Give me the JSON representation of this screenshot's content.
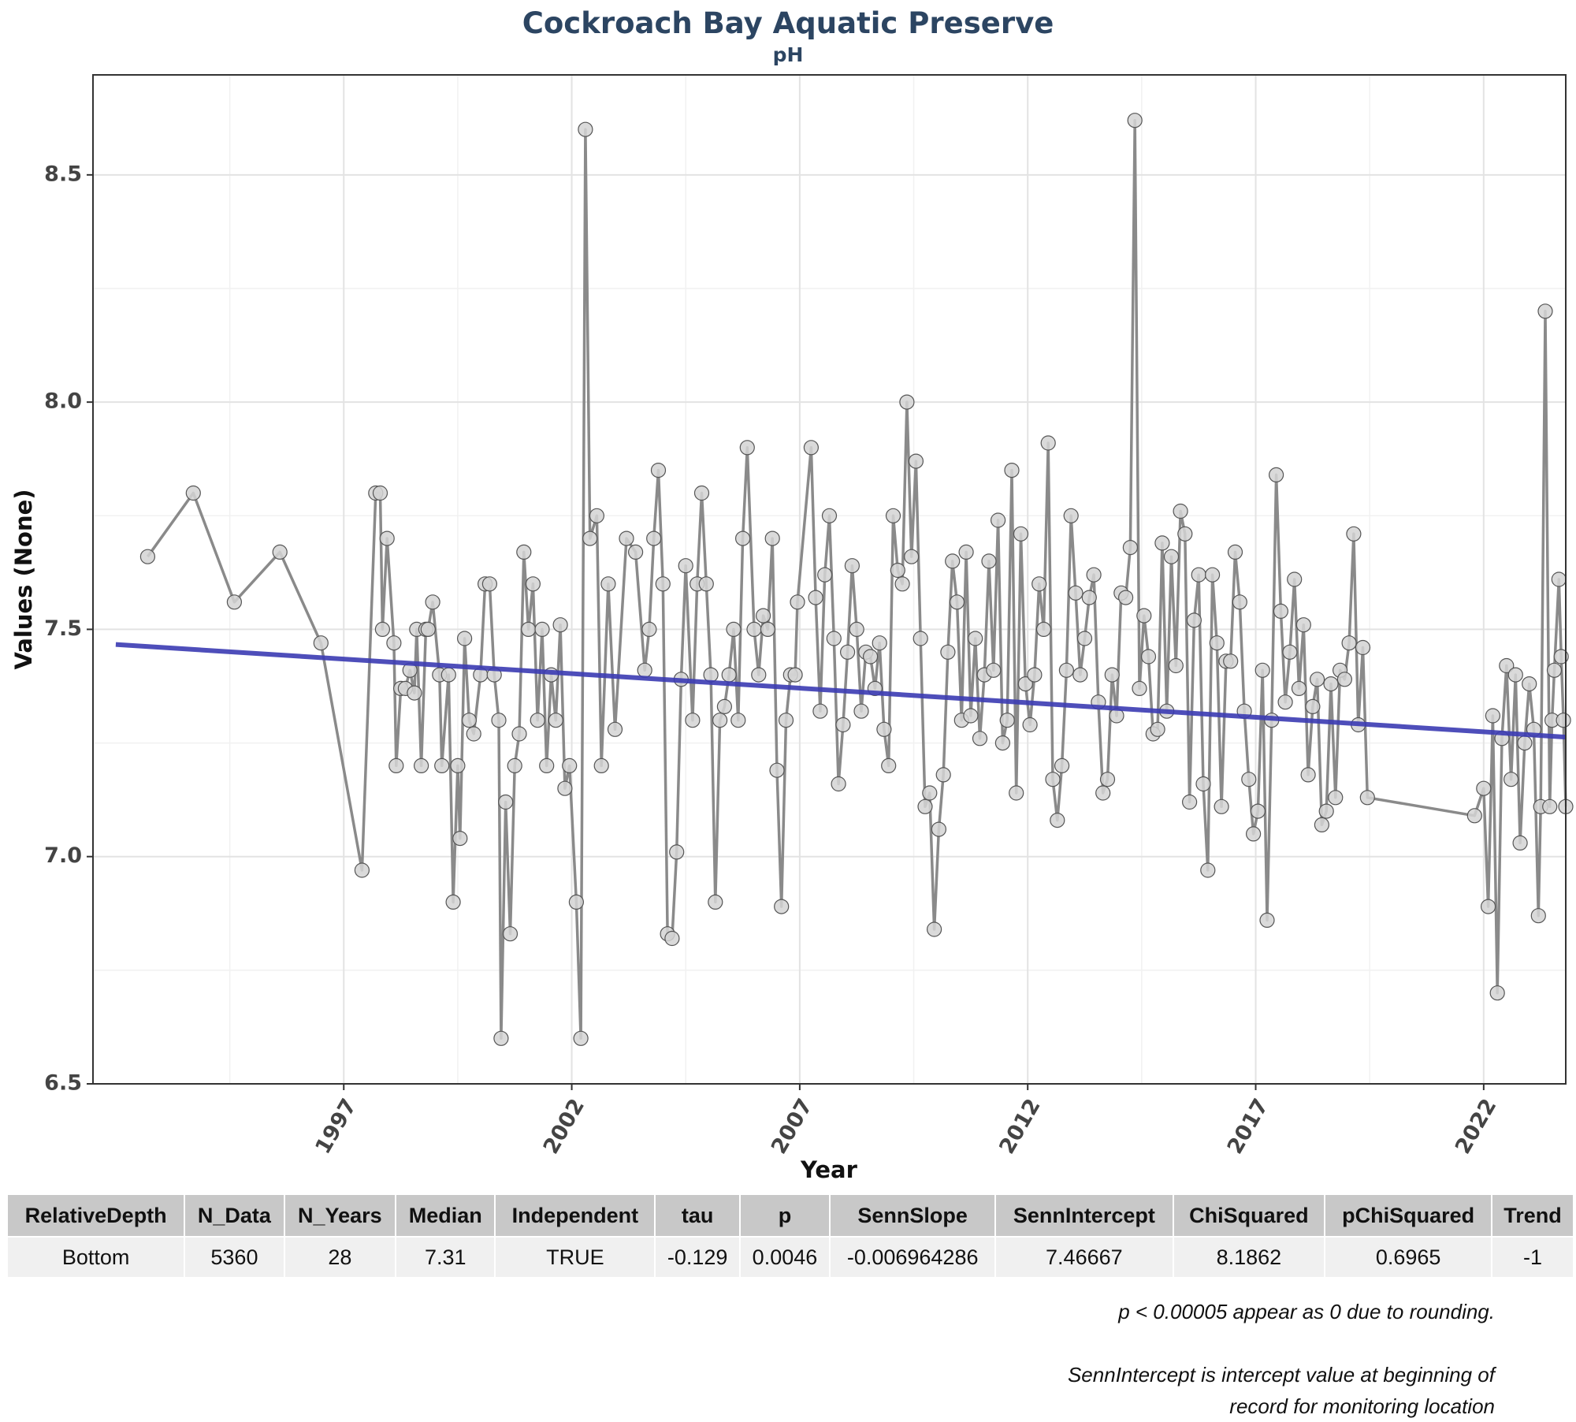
{
  "chart_data": {
    "type": "line",
    "title": "Cockroach Bay Aquatic Preserve",
    "subtitle": "pH",
    "xlabel": "Year",
    "ylabel": "Values (None)",
    "xlim": [
      1991.5,
      2023.8
    ],
    "ylim": [
      6.5,
      8.72
    ],
    "x_ticks": [
      1997,
      2002,
      2007,
      2012,
      2017,
      2022
    ],
    "y_ticks": [
      "6.5",
      "7.0",
      "7.5",
      "8.0",
      "8.5"
    ],
    "grid": true,
    "colors": {
      "series": "#8a8a8a",
      "point_fill": "#d3d3d3",
      "point_stroke": "#555555",
      "trend": "#3b3bb3"
    },
    "series": [
      {
        "values": [
          [
            1992.7,
            7.66
          ],
          [
            1993.7,
            7.8
          ],
          [
            1994.6,
            7.56
          ],
          [
            1995.6,
            7.67
          ],
          [
            1996.5,
            7.47
          ],
          [
            1997.4,
            6.97
          ],
          [
            1997.7,
            7.8
          ],
          [
            1997.8,
            7.8
          ],
          [
            1997.85,
            7.5
          ],
          [
            1997.95,
            7.7
          ],
          [
            1998.1,
            7.47
          ],
          [
            1998.15,
            7.2
          ],
          [
            1998.25,
            7.37
          ],
          [
            1998.35,
            7.37
          ],
          [
            1998.45,
            7.41
          ],
          [
            1998.55,
            7.36
          ],
          [
            1998.6,
            7.5
          ],
          [
            1998.7,
            7.2
          ],
          [
            1998.8,
            7.5
          ],
          [
            1998.85,
            7.5
          ],
          [
            1998.95,
            7.56
          ],
          [
            1999.1,
            7.4
          ],
          [
            1999.15,
            7.2
          ],
          [
            1999.3,
            7.4
          ],
          [
            1999.4,
            6.9
          ],
          [
            1999.5,
            7.2
          ],
          [
            1999.55,
            7.04
          ],
          [
            1999.65,
            7.48
          ],
          [
            1999.75,
            7.3
          ],
          [
            1999.85,
            7.27
          ],
          [
            2000.0,
            7.4
          ],
          [
            2000.1,
            7.6
          ],
          [
            2000.2,
            7.6
          ],
          [
            2000.3,
            7.4
          ],
          [
            2000.4,
            7.3
          ],
          [
            2000.45,
            6.6
          ],
          [
            2000.55,
            7.12
          ],
          [
            2000.65,
            6.83
          ],
          [
            2000.75,
            7.2
          ],
          [
            2000.85,
            7.27
          ],
          [
            2000.95,
            7.67
          ],
          [
            2001.05,
            7.5
          ],
          [
            2001.15,
            7.6
          ],
          [
            2001.25,
            7.3
          ],
          [
            2001.35,
            7.5
          ],
          [
            2001.45,
            7.2
          ],
          [
            2001.55,
            7.4
          ],
          [
            2001.65,
            7.3
          ],
          [
            2001.75,
            7.51
          ],
          [
            2001.85,
            7.15
          ],
          [
            2001.95,
            7.2
          ],
          [
            2002.1,
            6.9
          ],
          [
            2002.2,
            6.6
          ],
          [
            2002.3,
            8.6
          ],
          [
            2002.4,
            7.7
          ],
          [
            2002.55,
            7.75
          ],
          [
            2002.65,
            7.2
          ],
          [
            2002.8,
            7.6
          ],
          [
            2002.95,
            7.28
          ],
          [
            2003.2,
            7.7
          ],
          [
            2003.4,
            7.67
          ],
          [
            2003.6,
            7.41
          ],
          [
            2003.7,
            7.5
          ],
          [
            2003.8,
            7.7
          ],
          [
            2003.9,
            7.85
          ],
          [
            2004.0,
            7.6
          ],
          [
            2004.1,
            6.83
          ],
          [
            2004.2,
            6.82
          ],
          [
            2004.3,
            7.01
          ],
          [
            2004.4,
            7.39
          ],
          [
            2004.5,
            7.64
          ],
          [
            2004.65,
            7.3
          ],
          [
            2004.75,
            7.6
          ],
          [
            2004.85,
            7.8
          ],
          [
            2004.95,
            7.6
          ],
          [
            2005.05,
            7.4
          ],
          [
            2005.15,
            6.9
          ],
          [
            2005.25,
            7.3
          ],
          [
            2005.35,
            7.33
          ],
          [
            2005.45,
            7.4
          ],
          [
            2005.55,
            7.5
          ],
          [
            2005.65,
            7.3
          ],
          [
            2005.75,
            7.7
          ],
          [
            2005.85,
            7.9
          ],
          [
            2006.0,
            7.5
          ],
          [
            2006.1,
            7.4
          ],
          [
            2006.2,
            7.53
          ],
          [
            2006.3,
            7.5
          ],
          [
            2006.4,
            7.7
          ],
          [
            2006.5,
            7.19
          ],
          [
            2006.6,
            6.89
          ],
          [
            2006.7,
            7.3
          ],
          [
            2006.8,
            7.4
          ],
          [
            2006.9,
            7.4
          ],
          [
            2006.95,
            7.56
          ],
          [
            2007.25,
            7.9
          ],
          [
            2007.35,
            7.57
          ],
          [
            2007.45,
            7.32
          ],
          [
            2007.55,
            7.62
          ],
          [
            2007.65,
            7.75
          ],
          [
            2007.75,
            7.48
          ],
          [
            2007.85,
            7.16
          ],
          [
            2007.95,
            7.29
          ],
          [
            2008.05,
            7.45
          ],
          [
            2008.15,
            7.64
          ],
          [
            2008.25,
            7.5
          ],
          [
            2008.35,
            7.32
          ],
          [
            2008.45,
            7.45
          ],
          [
            2008.55,
            7.44
          ],
          [
            2008.65,
            7.37
          ],
          [
            2008.75,
            7.47
          ],
          [
            2008.85,
            7.28
          ],
          [
            2008.95,
            7.2
          ],
          [
            2009.05,
            7.75
          ],
          [
            2009.15,
            7.63
          ],
          [
            2009.25,
            7.6
          ],
          [
            2009.35,
            8.0
          ],
          [
            2009.45,
            7.66
          ],
          [
            2009.55,
            7.87
          ],
          [
            2009.65,
            7.48
          ],
          [
            2009.75,
            7.11
          ],
          [
            2009.85,
            7.14
          ],
          [
            2009.95,
            6.84
          ],
          [
            2010.05,
            7.06
          ],
          [
            2010.15,
            7.18
          ],
          [
            2010.25,
            7.45
          ],
          [
            2010.35,
            7.65
          ],
          [
            2010.45,
            7.56
          ],
          [
            2010.55,
            7.3
          ],
          [
            2010.65,
            7.67
          ],
          [
            2010.75,
            7.31
          ],
          [
            2010.85,
            7.48
          ],
          [
            2010.95,
            7.26
          ],
          [
            2011.05,
            7.4
          ],
          [
            2011.15,
            7.65
          ],
          [
            2011.25,
            7.41
          ],
          [
            2011.35,
            7.74
          ],
          [
            2011.45,
            7.25
          ],
          [
            2011.55,
            7.3
          ],
          [
            2011.65,
            7.85
          ],
          [
            2011.75,
            7.14
          ],
          [
            2011.85,
            7.71
          ],
          [
            2011.95,
            7.38
          ],
          [
            2012.05,
            7.29
          ],
          [
            2012.15,
            7.4
          ],
          [
            2012.25,
            7.6
          ],
          [
            2012.35,
            7.5
          ],
          [
            2012.45,
            7.91
          ],
          [
            2012.55,
            7.17
          ],
          [
            2012.65,
            7.08
          ],
          [
            2012.75,
            7.2
          ],
          [
            2012.85,
            7.41
          ],
          [
            2012.95,
            7.75
          ],
          [
            2013.05,
            7.58
          ],
          [
            2013.15,
            7.4
          ],
          [
            2013.25,
            7.48
          ],
          [
            2013.35,
            7.57
          ],
          [
            2013.45,
            7.62
          ],
          [
            2013.55,
            7.34
          ],
          [
            2013.65,
            7.14
          ],
          [
            2013.75,
            7.17
          ],
          [
            2013.85,
            7.4
          ],
          [
            2013.95,
            7.31
          ],
          [
            2014.05,
            7.58
          ],
          [
            2014.15,
            7.57
          ],
          [
            2014.25,
            7.68
          ],
          [
            2014.35,
            8.62
          ],
          [
            2014.45,
            7.37
          ],
          [
            2014.55,
            7.53
          ],
          [
            2014.65,
            7.44
          ],
          [
            2014.75,
            7.27
          ],
          [
            2014.85,
            7.28
          ],
          [
            2014.95,
            7.69
          ],
          [
            2015.05,
            7.32
          ],
          [
            2015.15,
            7.66
          ],
          [
            2015.25,
            7.42
          ],
          [
            2015.35,
            7.76
          ],
          [
            2015.45,
            7.71
          ],
          [
            2015.55,
            7.12
          ],
          [
            2015.65,
            7.52
          ],
          [
            2015.75,
            7.62
          ],
          [
            2015.85,
            7.16
          ],
          [
            2015.95,
            6.97
          ],
          [
            2016.05,
            7.62
          ],
          [
            2016.15,
            7.47
          ],
          [
            2016.25,
            7.11
          ],
          [
            2016.35,
            7.43
          ],
          [
            2016.45,
            7.43
          ],
          [
            2016.55,
            7.67
          ],
          [
            2016.65,
            7.56
          ],
          [
            2016.75,
            7.32
          ],
          [
            2016.85,
            7.17
          ],
          [
            2016.95,
            7.05
          ],
          [
            2017.05,
            7.1
          ],
          [
            2017.15,
            7.41
          ],
          [
            2017.25,
            6.86
          ],
          [
            2017.35,
            7.3
          ],
          [
            2017.45,
            7.84
          ],
          [
            2017.55,
            7.54
          ],
          [
            2017.65,
            7.34
          ],
          [
            2017.75,
            7.45
          ],
          [
            2017.85,
            7.61
          ],
          [
            2017.95,
            7.37
          ],
          [
            2018.05,
            7.51
          ],
          [
            2018.15,
            7.18
          ],
          [
            2018.25,
            7.33
          ],
          [
            2018.35,
            7.39
          ],
          [
            2018.45,
            7.07
          ],
          [
            2018.55,
            7.1
          ],
          [
            2018.65,
            7.38
          ],
          [
            2018.75,
            7.13
          ],
          [
            2018.85,
            7.41
          ],
          [
            2018.95,
            7.39
          ],
          [
            2019.05,
            7.47
          ],
          [
            2019.15,
            7.71
          ],
          [
            2019.25,
            7.29
          ],
          [
            2019.35,
            7.46
          ],
          [
            2019.45,
            7.13
          ],
          [
            2021.8,
            7.09
          ],
          [
            2022.0,
            7.15
          ],
          [
            2022.1,
            6.89
          ],
          [
            2022.2,
            7.31
          ],
          [
            2022.3,
            6.7
          ],
          [
            2022.4,
            7.26
          ],
          [
            2022.5,
            7.42
          ],
          [
            2022.6,
            7.17
          ],
          [
            2022.7,
            7.4
          ],
          [
            2022.8,
            7.03
          ],
          [
            2022.9,
            7.25
          ],
          [
            2023.0,
            7.38
          ],
          [
            2023.1,
            7.28
          ],
          [
            2023.2,
            6.87
          ],
          [
            2023.25,
            7.11
          ],
          [
            2023.35,
            8.2
          ],
          [
            2023.45,
            7.11
          ],
          [
            2023.5,
            7.3
          ],
          [
            2023.55,
            7.41
          ],
          [
            2023.65,
            7.61
          ],
          [
            2023.7,
            7.44
          ],
          [
            2023.75,
            7.3
          ],
          [
            2023.8,
            7.11
          ]
        ]
      }
    ],
    "trend_line": {
      "x": [
        1992.0,
        2023.8
      ],
      "y": [
        7.46667,
        7.263
      ]
    }
  },
  "table": {
    "headers": [
      "RelativeDepth",
      "N_Data",
      "N_Years",
      "Median",
      "Independent",
      "tau",
      "p",
      "SennSlope",
      "SennIntercept",
      "ChiSquared",
      "pChiSquared",
      "Trend"
    ],
    "rows": [
      [
        "Bottom",
        "5360",
        "28",
        "7.31",
        "TRUE",
        "-0.129",
        "0.0046",
        "-0.006964286",
        "7.46667",
        "8.1862",
        "0.6965",
        "-1"
      ]
    ]
  },
  "notes": {
    "rounding": "p < 0.00005 appear as 0 due to rounding.",
    "intercept_line1": "SennIntercept is intercept value at beginning of",
    "intercept_line2": "record for monitoring location"
  }
}
